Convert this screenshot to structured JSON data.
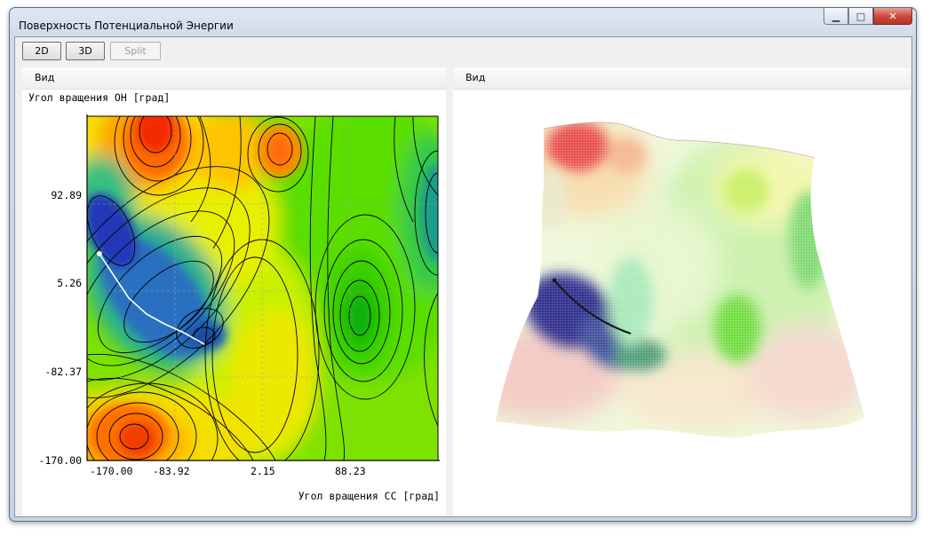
{
  "window": {
    "title": "Поверхность Потенциальной Энергии",
    "controls": {
      "minimize": "▁",
      "maximize": "□",
      "close": "✕"
    }
  },
  "toolbar": {
    "btn_2d": "2D",
    "btn_3d": "3D",
    "btn_split": "Split"
  },
  "left_pane": {
    "header": "Вид"
  },
  "right_pane": {
    "header": "Вид"
  },
  "contour_plot": {
    "ylabel": "Угол вращения OH [град]",
    "xlabel": "Угол вращения CC [град]",
    "xticks": [
      "-170.00",
      "-83.92",
      "2.15",
      "88.23"
    ],
    "yticks": [
      "92.89",
      "5.26",
      "-82.37",
      "-170.00"
    ],
    "colormap": [
      "#1f3fbf",
      "#1f8fbf",
      "#16b86a",
      "#5ee000",
      "#c6f000",
      "#f3f000",
      "#ffb000",
      "#ff7000",
      "#f23000"
    ],
    "path_color": "#ffffff"
  },
  "surface_3d": {
    "path_color": "#1a1a1a"
  }
}
